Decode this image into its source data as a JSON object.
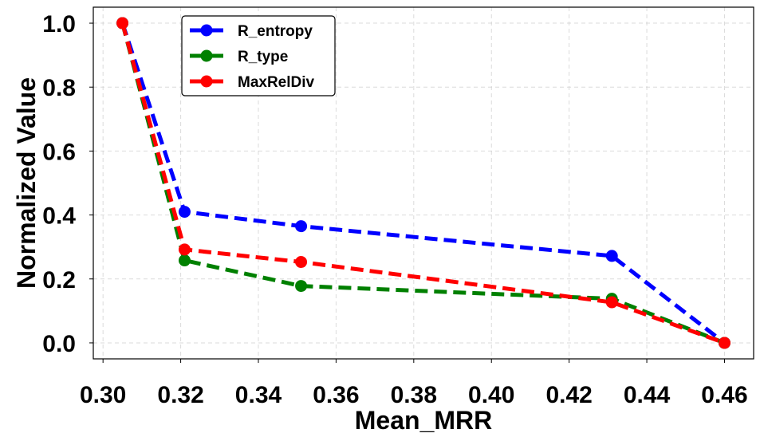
{
  "chart_data": {
    "type": "line",
    "title": "",
    "xlabel": "Mean_MRR",
    "ylabel": "Normalized Value",
    "xlim": [
      0.2975,
      0.4675
    ],
    "ylim": [
      -0.05,
      1.05
    ],
    "xticks": [
      "0.30",
      "0.32",
      "0.34",
      "0.36",
      "0.38",
      "0.40",
      "0.42",
      "0.44",
      "0.46"
    ],
    "yticks": [
      "0.0",
      "0.2",
      "0.4",
      "0.6",
      "0.8",
      "1.0"
    ],
    "grid": true,
    "legend_position": "top-left",
    "x": [
      0.305,
      0.321,
      0.351,
      0.431,
      0.46
    ],
    "series": [
      {
        "name": "R_entropy",
        "color": "#0000ff",
        "values": [
          1.0,
          0.41,
          0.365,
          0.272,
          0.0
        ]
      },
      {
        "name": "R_type",
        "color": "#008000",
        "values": [
          1.0,
          0.258,
          0.178,
          0.138,
          0.0
        ]
      },
      {
        "name": "MaxRelDiv",
        "color": "#ff0000",
        "values": [
          1.0,
          0.292,
          0.253,
          0.127,
          0.0
        ]
      }
    ]
  }
}
